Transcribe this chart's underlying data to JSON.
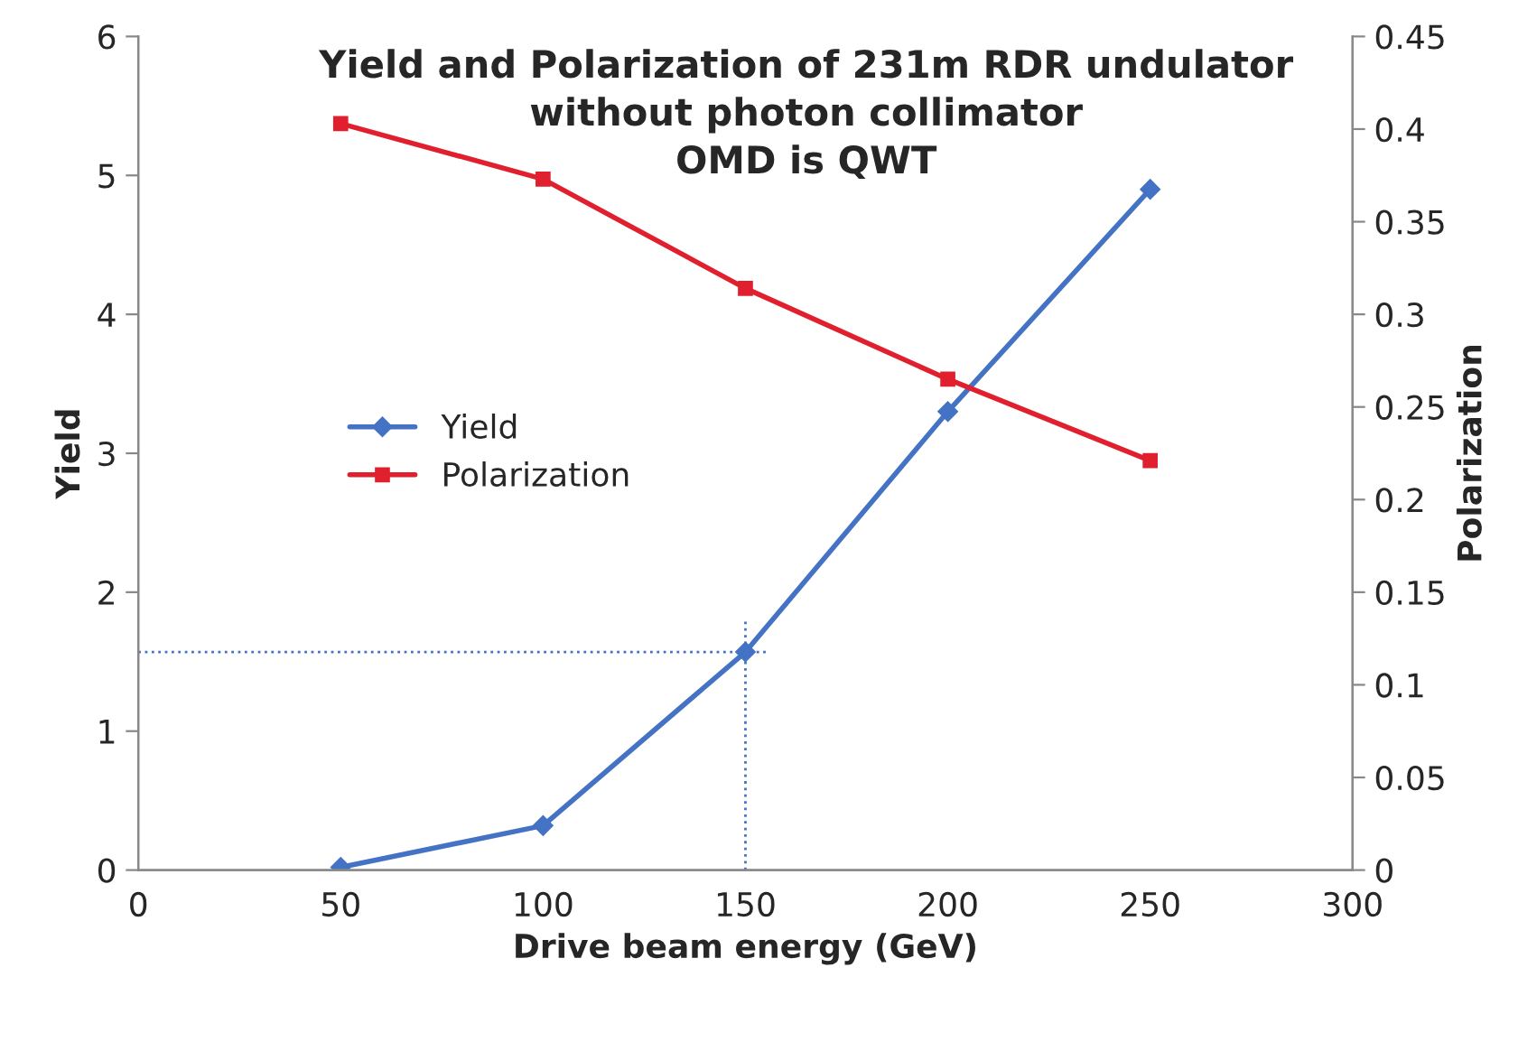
{
  "chart_data": {
    "type": "line",
    "title": "Yield and Polarization of 231m RDR undulator\nwithout photon collimator\nOMD is QWT",
    "xlabel": "Drive beam energy (GeV)",
    "ylabel": "Yield",
    "y2label": "Polarization",
    "x": [
      50,
      100,
      150,
      200,
      250
    ],
    "series": [
      {
        "name": "Yield",
        "color": "#4472c4",
        "marker": "diamond",
        "values": [
          0.02,
          0.32,
          1.57,
          3.3,
          4.9
        ]
      },
      {
        "name": "Polarization",
        "color": "#e0202e",
        "marker": "square",
        "axis": "y2",
        "values": [
          0.403,
          0.373,
          0.314,
          0.265,
          0.221
        ]
      }
    ],
    "xlim": [
      0,
      300
    ],
    "xticks": [
      0,
      50,
      100,
      150,
      200,
      250,
      300
    ],
    "ylim": [
      0,
      6
    ],
    "yticks": [
      0,
      1,
      2,
      3,
      4,
      5,
      6
    ],
    "y2lim": [
      0,
      0.45
    ],
    "y2ticks": [
      0,
      0.05,
      0.1,
      0.15,
      0.2,
      0.25,
      0.3,
      0.35,
      0.4,
      0.45
    ],
    "ref_lines": [
      {
        "axis": "y",
        "value": 1.57,
        "color": "#4472c4",
        "line_style": "dotted"
      },
      {
        "axis": "x",
        "value": 150,
        "color": "#4472c4",
        "line_style": "dotted"
      }
    ],
    "grid": false,
    "legend": "center left"
  }
}
